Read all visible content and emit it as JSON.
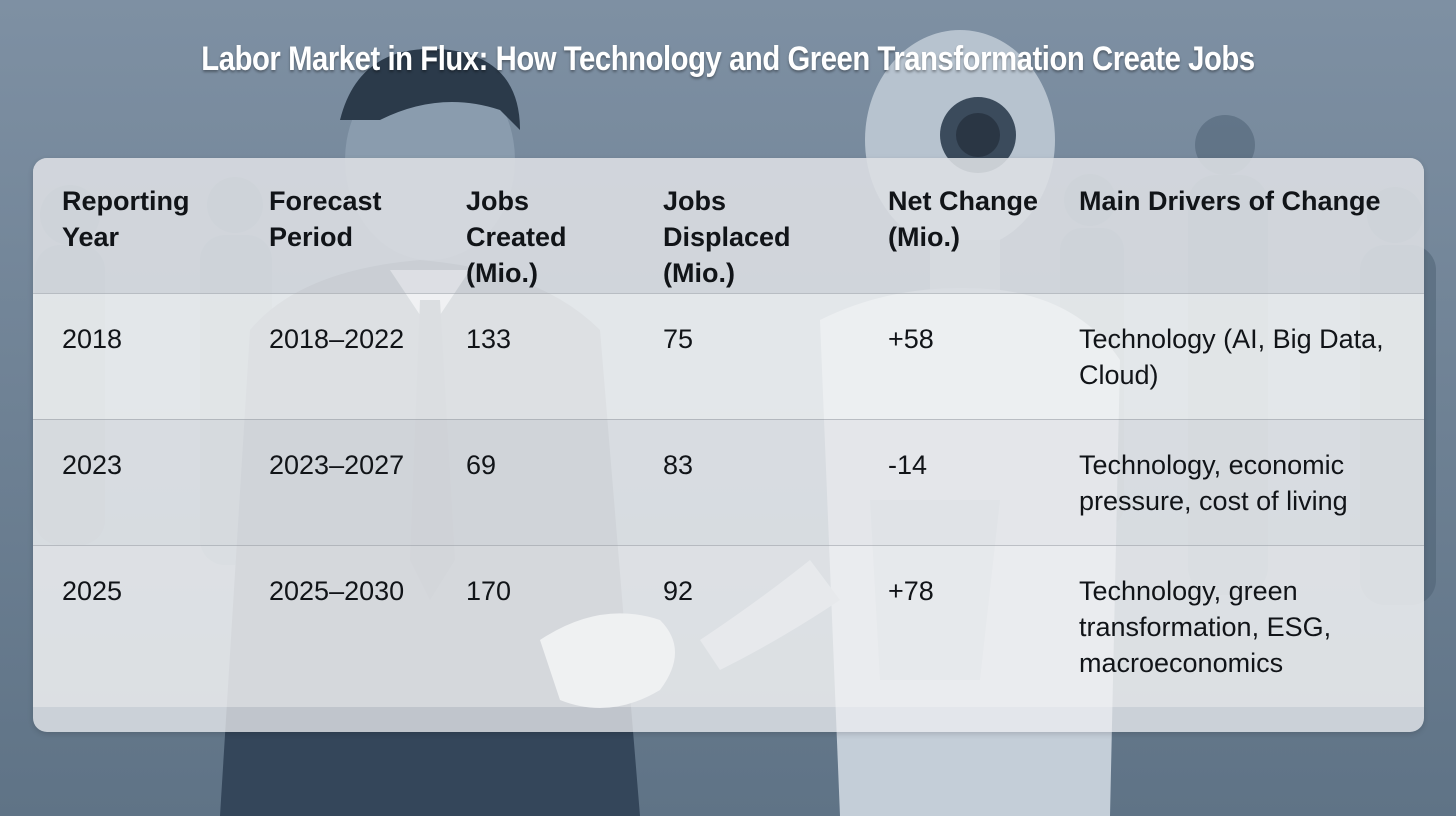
{
  "title": "Labor Market in Flux: How Technology and Green Transformation Create Jobs",
  "colors": {
    "background": "#6d8196",
    "title_text": "#ffffff",
    "panel": "#eceef0",
    "text": "#111418"
  },
  "table": {
    "headers": [
      "Reporting Year",
      "Forecast Period",
      "Jobs Created (Mio.)",
      "Jobs Displaced (Mio.)",
      "Net Change (Mio.)",
      "Main Drivers of Change"
    ],
    "rows": [
      [
        "2018",
        "2018–2022",
        "133",
        "75",
        "+58",
        "Technology (AI, Big Data, Cloud)"
      ],
      [
        "2023",
        "2023–2027",
        "69",
        "83",
        "-14",
        "Technology, economic pressure, cost of living"
      ],
      [
        "2025",
        "2025–2030",
        "170",
        "92",
        "+78",
        "Technology, green transformation, ESG, macroeconomics"
      ]
    ]
  }
}
